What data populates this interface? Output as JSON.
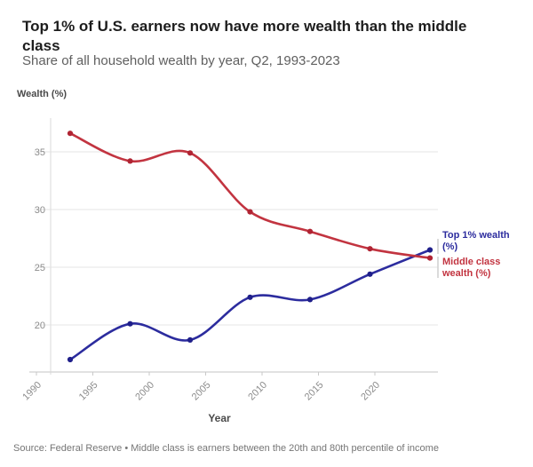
{
  "header": {
    "title_lines": [
      "Top 1% of U.S. earners now have more wealth than the middle",
      "class"
    ],
    "subtitle": "Share of all household wealth by year, Q2, 1993-2023"
  },
  "chart_data": {
    "type": "line",
    "title": "Top 1% of U.S. earners now have more wealth than the middle class",
    "subtitle": "Share of all household wealth by year, Q2, 1993-2023",
    "xlabel": "Year",
    "ylabel": "Wealth (%)",
    "x": [
      1993,
      1998,
      2003,
      2008,
      2013,
      2018,
      2023
    ],
    "series": [
      {
        "name": "Top 1% wealth (%)",
        "color": "#2c2c9e",
        "marker_color": "#1f1f8a",
        "values": [
          17.0,
          20.1,
          18.7,
          22.4,
          22.2,
          24.4,
          26.5
        ]
      },
      {
        "name": "Middle class wealth (%)",
        "color": "#c23440",
        "marker_color": "#b02433",
        "values": [
          36.6,
          34.2,
          34.9,
          29.8,
          28.1,
          26.6,
          25.8
        ]
      }
    ],
    "yticks": [
      20,
      25,
      30,
      35
    ],
    "xticks": [
      1990,
      1995,
      2000,
      2005,
      2010,
      2015,
      2020
    ],
    "ylim": [
      15.9,
      37.8
    ],
    "xlim": [
      1988.5,
      2024.5
    ],
    "grid": true,
    "legend_position": "right"
  },
  "footer": {
    "source": "Source: Federal Reserve • Middle class is earners between the 20th and 80th percentile of income"
  }
}
